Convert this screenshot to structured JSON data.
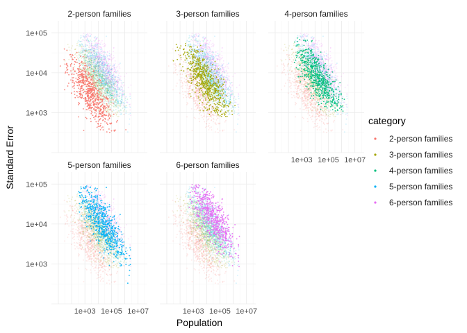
{
  "chart_data": {
    "type": "scatter",
    "xlabel": "Population",
    "ylabel": "Standard Error",
    "x_scale": "log10",
    "y_scale": "log10",
    "xlim": [
      3,
      50000000
    ],
    "ylim": [
      100,
      200000
    ],
    "x_ticks": [
      {
        "value": 1000,
        "label": "1e+03"
      },
      {
        "value": 100000,
        "label": "1e+05"
      },
      {
        "value": 10000000,
        "label": "1e+07"
      }
    ],
    "y_ticks": [
      {
        "value": 1000,
        "label": "1e+03"
      },
      {
        "value": 10000,
        "label": "1e+04"
      },
      {
        "value": 100000,
        "label": "1e+05"
      }
    ],
    "grid": true,
    "legend": {
      "title": "category",
      "position": "right",
      "entries": [
        {
          "name": "2-person families",
          "color": "#F8766D"
        },
        {
          "name": "3-person families",
          "color": "#A3A500"
        },
        {
          "name": "4-person families",
          "color": "#00BF7D"
        },
        {
          "name": "5-person families",
          "color": "#00B0F6"
        },
        {
          "name": "6-person families",
          "color": "#E76BF3"
        }
      ]
    },
    "facets": [
      {
        "title": "2-person families",
        "highlight": "2-person families"
      },
      {
        "title": "3-person families",
        "highlight": "3-person families"
      },
      {
        "title": "4-person families",
        "highlight": "4-person families"
      },
      {
        "title": "5-person families",
        "highlight": "5-person families"
      },
      {
        "title": "6-person families",
        "highlight": "6-person families"
      }
    ],
    "series": [
      {
        "name": "2-person families",
        "color": "#F8766D",
        "cluster_center": {
          "x": 2500,
          "y": 3000
        },
        "x_range": [
          10,
          5000000
        ],
        "y_range": [
          300,
          70000
        ]
      },
      {
        "name": "3-person families",
        "color": "#A3A500",
        "cluster_center": {
          "x": 8000,
          "y": 6000
        },
        "x_range": [
          30,
          5000000
        ],
        "y_range": [
          800,
          60000
        ]
      },
      {
        "name": "4-person families",
        "color": "#00BF7D",
        "cluster_center": {
          "x": 15000,
          "y": 8000
        },
        "x_range": [
          200,
          5000000
        ],
        "y_range": [
          1000,
          80000
        ]
      },
      {
        "name": "5-person families",
        "color": "#00B0F6",
        "cluster_center": {
          "x": 20000,
          "y": 11000
        },
        "x_range": [
          300,
          3000000
        ],
        "y_range": [
          200,
          90000
        ]
      },
      {
        "name": "6-person families",
        "color": "#E76BF3",
        "cluster_center": {
          "x": 30000,
          "y": 14000
        },
        "x_range": [
          300,
          3000000
        ],
        "y_range": [
          200,
          100000
        ]
      }
    ]
  }
}
